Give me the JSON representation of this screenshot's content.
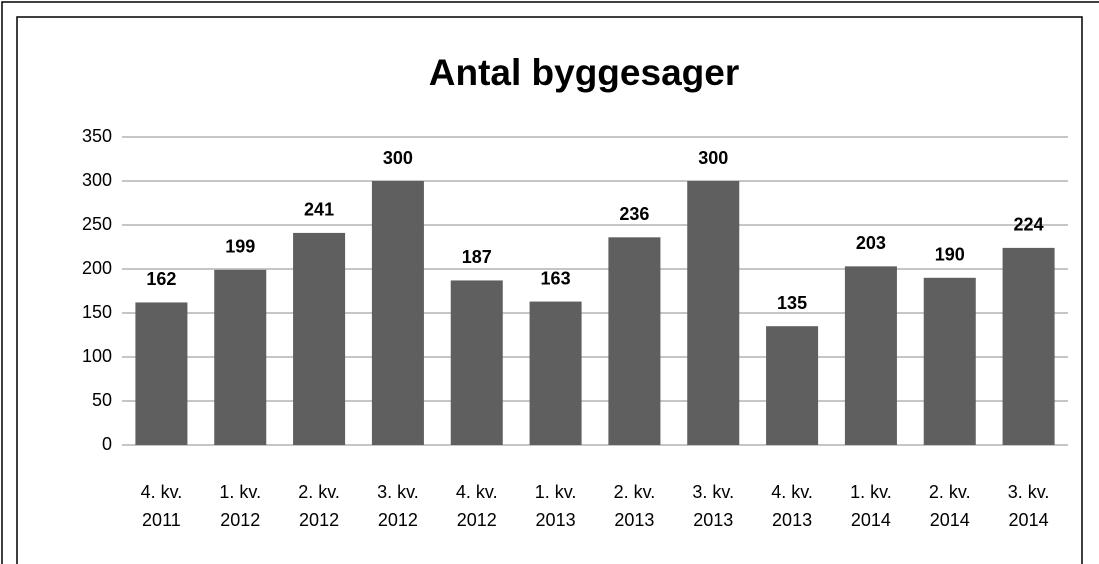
{
  "chart_data": {
    "type": "bar",
    "title": "Antal byggesager",
    "categories": [
      "4. kv. 2011",
      "1. kv. 2012",
      "2. kv. 2012",
      "3. kv. 2012",
      "4. kv. 2012",
      "1. kv. 2013",
      "2. kv. 2013",
      "3. kv. 2013",
      "4. kv. 2013",
      "1. kv. 2014",
      "2. kv. 2014",
      "3. kv. 2014"
    ],
    "values": [
      162,
      199,
      241,
      300,
      187,
      163,
      236,
      300,
      135,
      203,
      190,
      224
    ],
    "color": "#5f5f5f",
    "ylim": [
      0,
      350
    ],
    "yticks": [
      0,
      50,
      100,
      150,
      200,
      250,
      300,
      350
    ],
    "grid": true
  }
}
